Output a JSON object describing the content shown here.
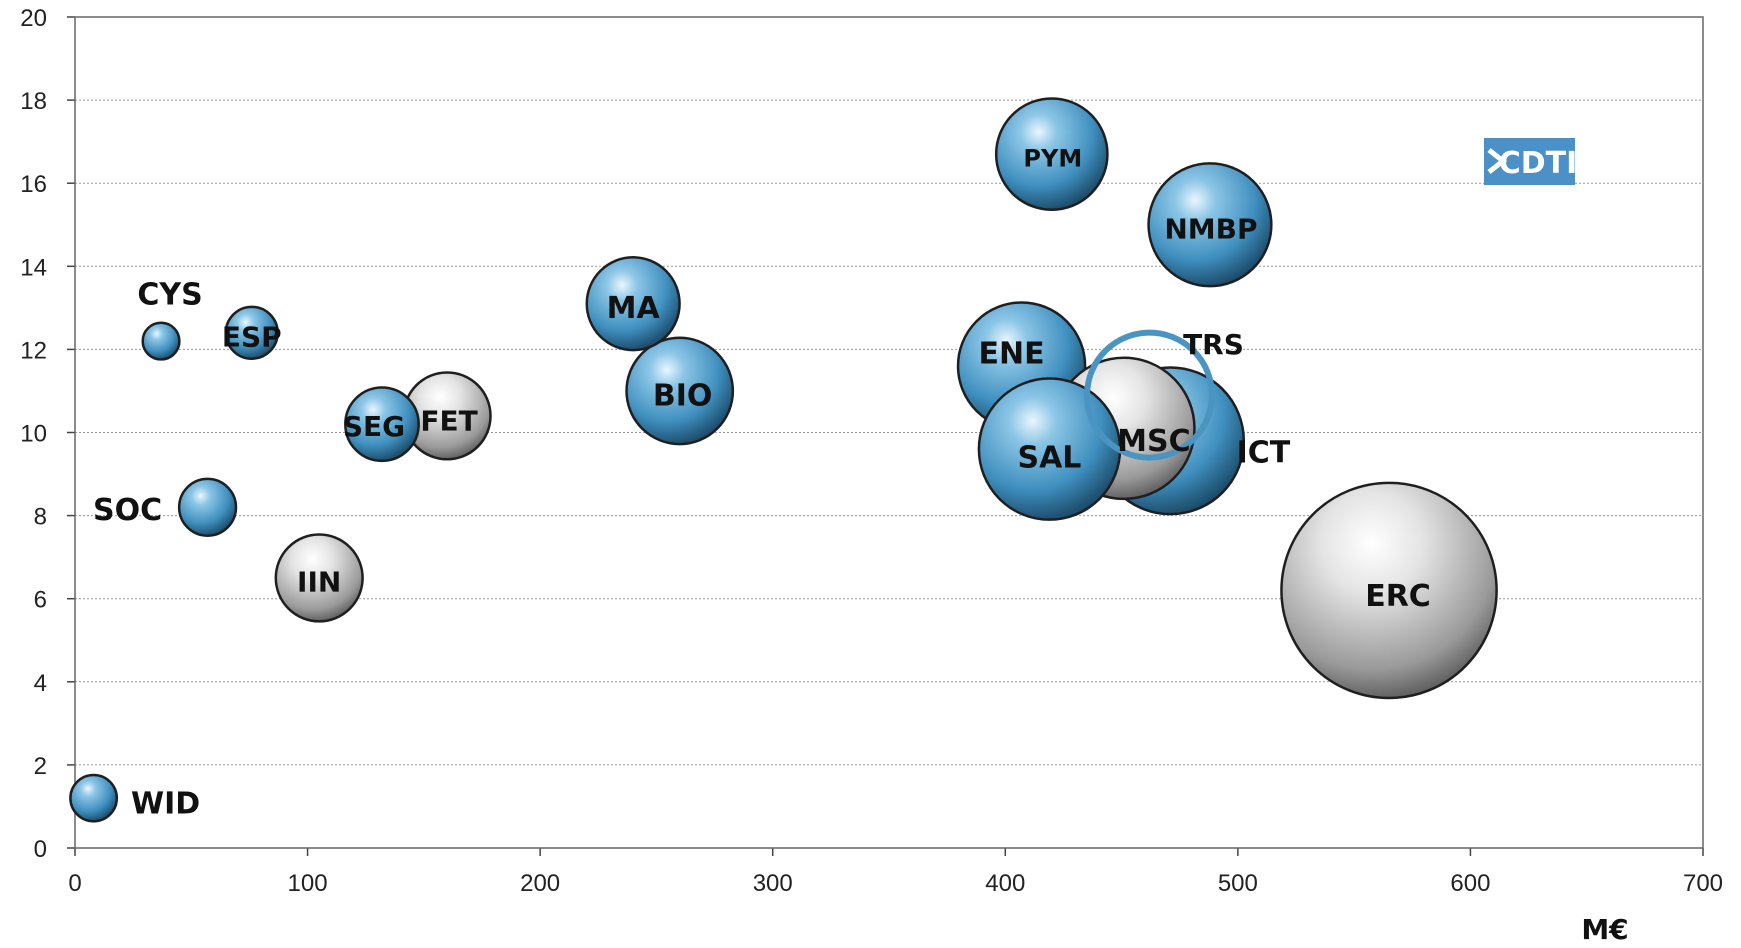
{
  "chart_data": {
    "type": "bubble",
    "xlabel": "M€",
    "ylabel": "",
    "xlim": [
      0,
      700
    ],
    "ylim": [
      0,
      20
    ],
    "x_ticks": [
      0,
      100,
      200,
      300,
      400,
      500,
      600,
      700
    ],
    "y_ticks": [
      0,
      2,
      4,
      6,
      8,
      10,
      12,
      14,
      16,
      18,
      20
    ],
    "grid": "horizontal-dotted",
    "colors": {
      "blue": "#4a9ac9",
      "gray": "#c8c8c8",
      "highlight": "#4a94c2"
    },
    "points": [
      {
        "label": "WID",
        "x": 8,
        "y": 1.2,
        "size": 4,
        "color": "blue"
      },
      {
        "label": "CYS",
        "x": 37,
        "y": 12.2,
        "size": 2.5,
        "color": "blue"
      },
      {
        "label": "ESP",
        "x": 76,
        "y": 12.4,
        "size": 5,
        "color": "blue"
      },
      {
        "label": "SOC",
        "x": 57,
        "y": 8.2,
        "size": 6,
        "color": "blue"
      },
      {
        "label": "IIN",
        "x": 105,
        "y": 6.5,
        "size": 14,
        "color": "gray"
      },
      {
        "label": "SEG",
        "x": 132,
        "y": 10.2,
        "size": 10,
        "color": "blue"
      },
      {
        "label": "FET",
        "x": 160,
        "y": 10.4,
        "size": 14,
        "color": "gray"
      },
      {
        "label": "MA",
        "x": 240,
        "y": 13.1,
        "size": 16,
        "color": "blue"
      },
      {
        "label": "BIO",
        "x": 260,
        "y": 11.0,
        "size": 21,
        "color": "blue"
      },
      {
        "label": "PYM",
        "x": 420,
        "y": 16.7,
        "size": 23,
        "color": "blue"
      },
      {
        "label": "NMBP",
        "x": 488,
        "y": 15.0,
        "size": 28,
        "color": "blue"
      },
      {
        "label": "ENE",
        "x": 407,
        "y": 11.6,
        "size": 30,
        "color": "blue"
      },
      {
        "label": "ICT",
        "x": 471,
        "y": 9.8,
        "size": 40,
        "color": "blue"
      },
      {
        "label": "MSC",
        "x": 451,
        "y": 10.1,
        "size": 37,
        "color": "gray"
      },
      {
        "label": "SAL",
        "x": 419,
        "y": 9.6,
        "size": 37,
        "color": "blue"
      },
      {
        "label": "ERC",
        "x": 565,
        "y": 6.2,
        "size": 86,
        "color": "gray"
      },
      {
        "label": "TRS",
        "x": 462,
        "y": 10.9,
        "size": 29,
        "color": "highlight",
        "hollow": true
      }
    ],
    "logo": "CDTI"
  }
}
